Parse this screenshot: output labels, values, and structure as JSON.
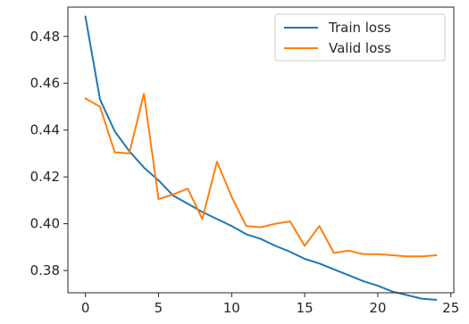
{
  "chart_data": {
    "type": "line",
    "title": "",
    "xlabel": "",
    "ylabel": "",
    "xlim": [
      -1.2,
      25.2
    ],
    "ylim": [
      0.3705,
      0.4925
    ],
    "x_ticks": [
      0,
      5,
      10,
      15,
      20,
      25
    ],
    "y_ticks": [
      0.38,
      0.4,
      0.42,
      0.44,
      0.46,
      0.48
    ],
    "y_tick_labels": [
      "0.38",
      "0.40",
      "0.42",
      "0.44",
      "0.46",
      "0.48"
    ],
    "grid": false,
    "legend_position": "top-right",
    "x": [
      0,
      1,
      2,
      3,
      4,
      5,
      6,
      7,
      8,
      9,
      10,
      11,
      12,
      13,
      14,
      15,
      16,
      17,
      18,
      19,
      20,
      21,
      22,
      23,
      24
    ],
    "series": [
      {
        "name": "Train loss",
        "color": "#1f77b4",
        "values": [
          0.4885,
          0.453,
          0.4395,
          0.431,
          0.424,
          0.4185,
          0.412,
          0.4085,
          0.405,
          0.402,
          0.399,
          0.3955,
          0.3935,
          0.3905,
          0.388,
          0.385,
          0.383,
          0.3805,
          0.378,
          0.3755,
          0.3735,
          0.371,
          0.3695,
          0.368,
          0.3675
        ]
      },
      {
        "name": "Valid loss",
        "color": "#ff7f0e",
        "values": [
          0.4535,
          0.45,
          0.4305,
          0.43,
          0.4555,
          0.4105,
          0.4125,
          0.415,
          0.402,
          0.4265,
          0.4115,
          0.399,
          0.3985,
          0.4,
          0.401,
          0.3905,
          0.399,
          0.3875,
          0.3885,
          0.387,
          0.387,
          0.3865,
          0.386,
          0.386,
          0.3865
        ]
      }
    ]
  }
}
